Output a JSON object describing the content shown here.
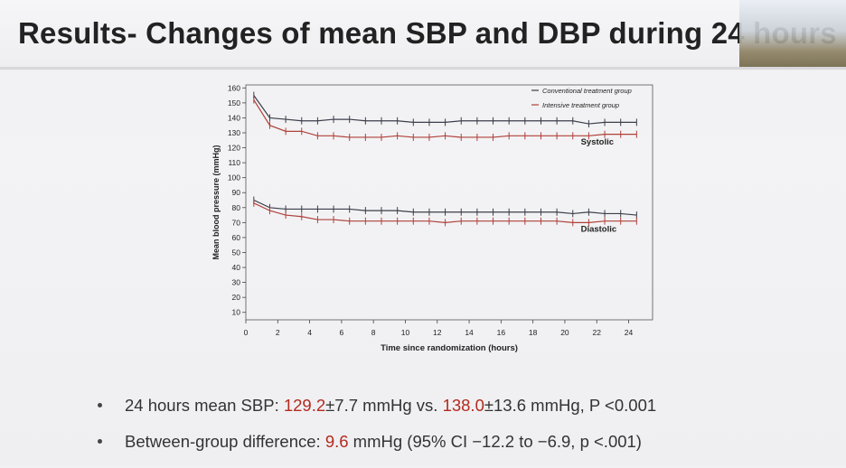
{
  "slide": {
    "title": "Results- Changes of mean SBP and DBP during 24 hours"
  },
  "bullets": [
    {
      "prefix": "24 hours mean SBP: ",
      "v1": "129.2",
      "mid1": "±7.7 mmHg vs. ",
      "v2": "138.0",
      "suffix": "±13.6 mmHg, P <0.001"
    },
    {
      "prefix": "Between-group difference: ",
      "v1": "9.6",
      "suffix": " mmHg (95% CI −12.2 to −6.9, p <.001)"
    }
  ],
  "colors": {
    "conventional": "#3b3e4a",
    "intensive": "#b0403a",
    "highlight": "#b42a1e"
  },
  "chart_data": {
    "type": "line",
    "xlabel": "Time since randomization (hours)",
    "ylabel": "Mean blood pressure (mmHg)",
    "xlim": [
      0,
      25.5
    ],
    "ylim": [
      5,
      162
    ],
    "xticks": [
      0,
      2,
      4,
      6,
      8,
      10,
      12,
      14,
      16,
      18,
      20,
      22,
      24
    ],
    "yticks": [
      10,
      20,
      30,
      40,
      50,
      60,
      70,
      80,
      90,
      100,
      110,
      120,
      130,
      140,
      150,
      160
    ],
    "legend_position": "top-right",
    "annotations": [
      {
        "text": "Systolic",
        "x": 21,
        "y": 122
      },
      {
        "text": "Diastolic",
        "x": 21,
        "y": 64
      }
    ],
    "x": [
      0.5,
      1.5,
      2.5,
      3.5,
      4.5,
      5.5,
      6.5,
      7.5,
      8.5,
      9.5,
      10.5,
      11.5,
      12.5,
      13.5,
      14.5,
      15.5,
      16.5,
      17.5,
      18.5,
      19.5,
      20.5,
      21.5,
      22.5,
      23.5,
      24.5
    ],
    "series": [
      {
        "name": "Conventional treatment group",
        "group": "Systolic",
        "values": [
          155,
          140,
          139,
          138,
          138,
          139,
          139,
          138,
          138,
          138,
          137,
          137,
          137,
          138,
          138,
          138,
          138,
          138,
          138,
          138,
          138,
          136,
          137,
          137,
          137
        ]
      },
      {
        "name": "Intensive treatment group",
        "group": "Systolic",
        "values": [
          152,
          135,
          131,
          131,
          128,
          128,
          127,
          127,
          127,
          128,
          127,
          127,
          128,
          127,
          127,
          127,
          128,
          128,
          128,
          128,
          128,
          128,
          129,
          129,
          129
        ]
      },
      {
        "name": "Conventional treatment group",
        "group": "Diastolic",
        "values": [
          85,
          80,
          79,
          79,
          79,
          79,
          79,
          78,
          78,
          78,
          77,
          77,
          77,
          77,
          77,
          77,
          77,
          77,
          77,
          77,
          76,
          77,
          76,
          76,
          75
        ]
      },
      {
        "name": "Intensive treatment group",
        "group": "Diastolic",
        "values": [
          83,
          78,
          75,
          74,
          72,
          72,
          71,
          71,
          71,
          71,
          71,
          71,
          70,
          71,
          71,
          71,
          71,
          71,
          71,
          71,
          70,
          70,
          71,
          71,
          71
        ]
      }
    ]
  }
}
